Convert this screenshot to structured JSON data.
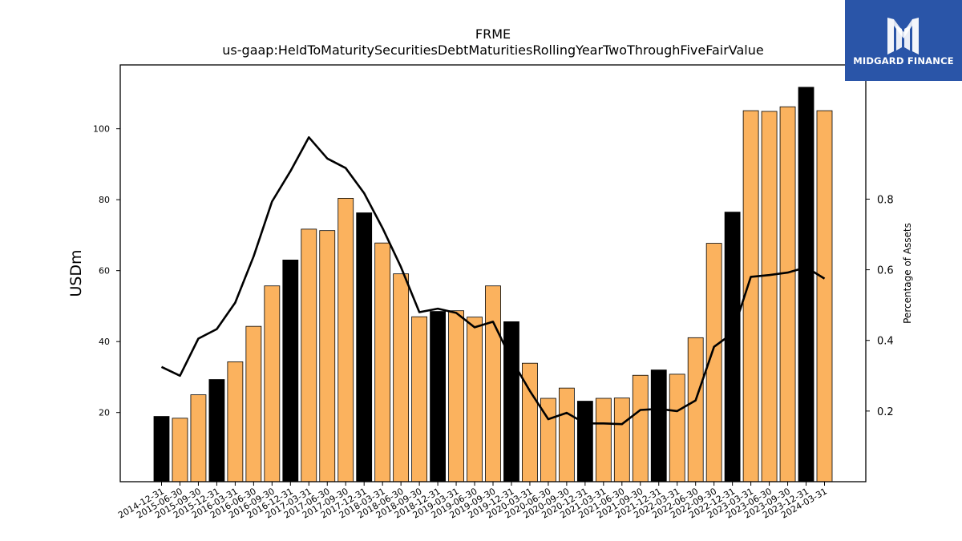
{
  "chart_data": {
    "type": "bar",
    "title": "FRME",
    "subtitle": "us-gaap:HeldToMaturitySecuritiesDebtMaturitiesRollingYearTwoThroughFiveFairValue",
    "ylabel": "USDm",
    "y2label": "Percentage of Assets",
    "ylim": [
      0.5,
      118
    ],
    "y2lim": [
      0.0,
      1.18
    ],
    "yticks": [
      20,
      40,
      60,
      80,
      100
    ],
    "y2ticks": [
      0.2,
      0.4,
      0.6,
      0.8
    ],
    "categories": [
      "2014-12-31",
      "2015-06-30",
      "2015-09-30",
      "2015-12-31",
      "2016-03-31",
      "2016-06-30",
      "2016-09-30",
      "2016-12-31",
      "2017-03-31",
      "2017-06-30",
      "2017-09-30",
      "2017-12-31",
      "2018-03-31",
      "2018-06-30",
      "2018-09-30",
      "2018-12-31",
      "2019-03-31",
      "2019-06-30",
      "2019-09-30",
      "2019-12-31",
      "2020-03-31",
      "2020-06-30",
      "2020-09-30",
      "2020-12-31",
      "2021-03-31",
      "2021-06-30",
      "2021-09-30",
      "2021-12-31",
      "2022-03-31",
      "2022-06-30",
      "2022-09-30",
      "2022-12-31",
      "2023-03-31",
      "2023-06-30",
      "2023-09-30",
      "2023-12-31",
      "2024-03-31"
    ],
    "series": [
      {
        "type": "bar",
        "values": [
          18.9,
          18.4,
          25.0,
          29.3,
          34.3,
          44.3,
          55.7,
          63.0,
          71.7,
          71.3,
          80.4,
          76.3,
          67.8,
          59.1,
          47.0,
          48.5,
          48.7,
          46.9,
          55.7,
          45.6,
          33.9,
          24.0,
          26.9,
          23.2,
          24.0,
          24.1,
          30.5,
          32.0,
          30.8,
          41.1,
          67.7,
          76.5,
          105.1,
          104.9,
          106.2,
          111.7,
          105.1
        ],
        "colors": [
          "#000000",
          "#fbb25e",
          "#fbb25e",
          "#000000",
          "#fbb25e",
          "#fbb25e",
          "#fbb25e",
          "#000000",
          "#fbb25e",
          "#fbb25e",
          "#fbb25e",
          "#000000",
          "#fbb25e",
          "#fbb25e",
          "#fbb25e",
          "#000000",
          "#fbb25e",
          "#fbb25e",
          "#fbb25e",
          "#000000",
          "#fbb25e",
          "#fbb25e",
          "#fbb25e",
          "#000000",
          "#fbb25e",
          "#fbb25e",
          "#fbb25e",
          "#000000",
          "#fbb25e",
          "#fbb25e",
          "#fbb25e",
          "#000000",
          "#fbb25e",
          "#fbb25e",
          "#fbb25e",
          "#000000",
          "#fbb25e"
        ]
      },
      {
        "type": "line",
        "axis": "right",
        "color": "#000000",
        "values": [
          0.325,
          0.3,
          0.405,
          0.432,
          0.507,
          0.638,
          0.793,
          0.879,
          0.975,
          0.915,
          0.888,
          0.817,
          0.718,
          0.608,
          0.48,
          0.49,
          0.478,
          0.437,
          0.453,
          0.346,
          0.257,
          0.177,
          0.195,
          0.165,
          0.165,
          0.163,
          0.203,
          0.206,
          0.2,
          0.23,
          0.382,
          0.42,
          0.58,
          0.585,
          0.592,
          0.607,
          0.575
        ]
      }
    ],
    "grid": false,
    "legend": false
  },
  "brand": {
    "name": "MIDGARD FINANCE",
    "color": "#2a55a8",
    "icon": "midgard-logo-icon"
  }
}
